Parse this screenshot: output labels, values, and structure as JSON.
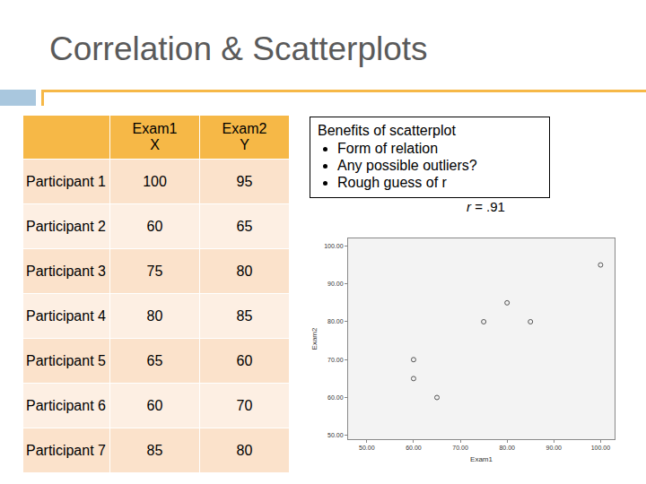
{
  "slide_title": "Correlation & Scatterplots",
  "table": {
    "header": [
      "",
      "Exam1\nX",
      "Exam2\nY"
    ],
    "rows": [
      [
        "Participant 1",
        "100",
        "95"
      ],
      [
        "Participant 2",
        "60",
        "65"
      ],
      [
        "Participant 3",
        "75",
        "80"
      ],
      [
        "Participant 4",
        "80",
        "85"
      ],
      [
        "Participant 5",
        "65",
        "60"
      ],
      [
        "Participant 6",
        "60",
        "70"
      ],
      [
        "Participant 7",
        "85",
        "80"
      ]
    ]
  },
  "note": {
    "heading": "Benefits of scatterplot",
    "bullets": [
      "Form of relation",
      "Any possible outliers?",
      "Rough guess of r"
    ]
  },
  "chart_data": {
    "type": "scatter",
    "annotation": "r = .91",
    "xlabel": "Exam1",
    "ylabel": "Exam2",
    "x": [
      100,
      60,
      75,
      80,
      65,
      60,
      85
    ],
    "values": [
      95,
      65,
      80,
      85,
      60,
      70,
      80
    ],
    "xlim": [
      46,
      103
    ],
    "ylim": [
      49,
      102
    ],
    "xticks": [
      {
        "value": 50,
        "label": "50.00"
      },
      {
        "value": 60,
        "label": "60.00"
      },
      {
        "value": 70,
        "label": "70.00"
      },
      {
        "value": 80,
        "label": "80.00"
      },
      {
        "value": 90,
        "label": "90.00"
      },
      {
        "value": 100,
        "label": "100.00"
      }
    ],
    "yticks": [
      {
        "value": 50,
        "label": "50.00"
      },
      {
        "value": 60,
        "label": "60.00"
      },
      {
        "value": 70,
        "label": "70.00"
      },
      {
        "value": 80,
        "label": "80.00"
      },
      {
        "value": 90,
        "label": "90.00"
      },
      {
        "value": 100,
        "label": "100.00"
      }
    ],
    "grid": false,
    "marker": "open circle",
    "color": "#555555"
  }
}
